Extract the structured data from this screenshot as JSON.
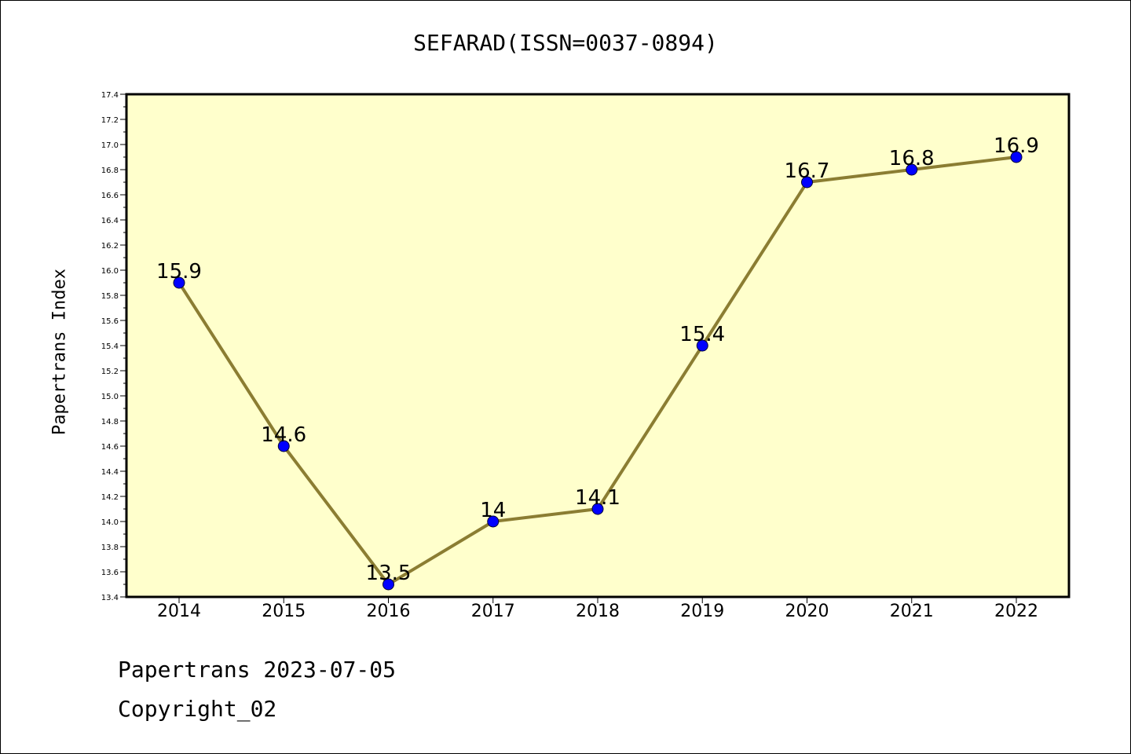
{
  "colors": {
    "plot_background": "#ffffcc",
    "line": "#8b7d32",
    "marker": "#0000ff",
    "axis": "#000000"
  },
  "chart_data": {
    "type": "line",
    "title": "SEFARAD(ISSN=0037-0894)",
    "xlabel": "",
    "ylabel": "Papertrans Index",
    "categories": [
      "2014",
      "2015",
      "2016",
      "2017",
      "2018",
      "2019",
      "2020",
      "2021",
      "2022"
    ],
    "series": [
      {
        "values": [
          15.9,
          14.6,
          13.5,
          14.0,
          14.1,
          15.4,
          16.7,
          16.8,
          16.9
        ],
        "data_labels": [
          "15.9",
          "14.6",
          "13.5",
          "14",
          "14.1",
          "15.4",
          "16.7",
          "16.8",
          "16.9"
        ]
      }
    ],
    "ylim": [
      13.4,
      17.4
    ],
    "yticks": [
      "13.4",
      "13.6",
      "13.8",
      "14.0",
      "14.2",
      "14.4",
      "14.6",
      "14.8",
      "15.0",
      "15.2",
      "15.4",
      "15.6",
      "15.8",
      "16.0",
      "16.2",
      "16.4",
      "16.6",
      "16.8",
      "17.0",
      "17.2",
      "17.4"
    ],
    "grid": false,
    "legend": "none"
  },
  "footer": {
    "line1": "Papertrans 2023-07-05",
    "line2": "Copyright_02"
  }
}
